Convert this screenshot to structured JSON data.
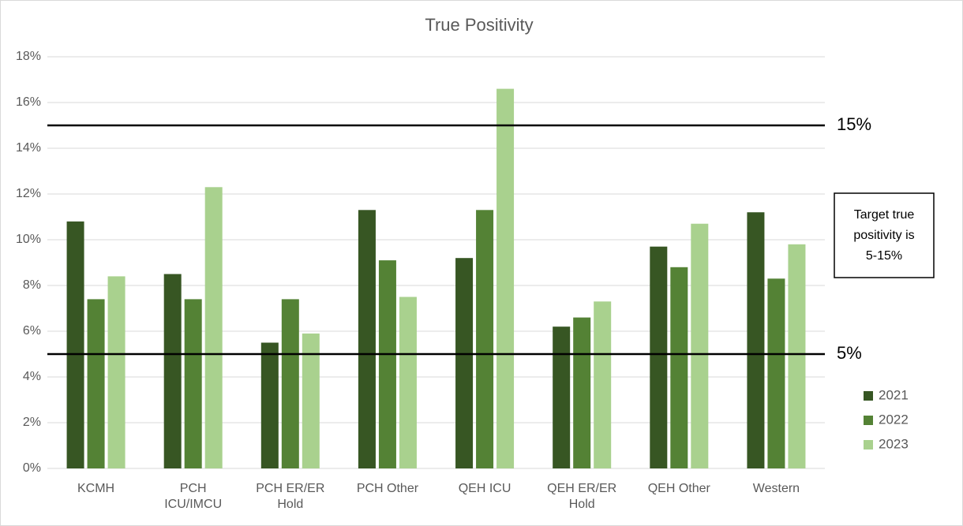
{
  "chart_data": {
    "type": "bar",
    "title": "True Positivity",
    "categories": [
      "KCMH",
      "PCH ICU/IMCU",
      "PCH ER/ER Hold",
      "PCH Other",
      "QEH ICU",
      "QEH ER/ER Hold",
      "QEH Other",
      "Western"
    ],
    "series": [
      {
        "name": "2021",
        "color": "#375623",
        "values": [
          10.8,
          8.5,
          5.5,
          11.3,
          9.2,
          6.2,
          9.7,
          11.2
        ]
      },
      {
        "name": "2022",
        "color": "#548235",
        "values": [
          7.4,
          7.4,
          7.4,
          9.1,
          11.3,
          6.6,
          8.8,
          8.3
        ]
      },
      {
        "name": "2023",
        "color": "#a9d18e",
        "values": [
          8.4,
          12.3,
          5.9,
          7.5,
          16.6,
          7.3,
          10.7,
          9.8
        ]
      }
    ],
    "ylim": [
      0,
      18
    ],
    "yticks": [
      {
        "value": 0,
        "label": "0%"
      },
      {
        "value": 2,
        "label": "2%"
      },
      {
        "value": 4,
        "label": "4%"
      },
      {
        "value": 6,
        "label": "6%"
      },
      {
        "value": 8,
        "label": "8%"
      },
      {
        "value": 10,
        "label": "10%"
      },
      {
        "value": 12,
        "label": "12%"
      },
      {
        "value": 14,
        "label": "14%"
      },
      {
        "value": 16,
        "label": "16%"
      },
      {
        "value": 18,
        "label": "18%"
      }
    ],
    "grid": true,
    "legend": "right",
    "reference_lines": [
      {
        "value": 15,
        "label": "15%"
      },
      {
        "value": 5,
        "label": "5%"
      }
    ],
    "annotation": [
      "Target true",
      "positivity is",
      "5-15%"
    ]
  }
}
